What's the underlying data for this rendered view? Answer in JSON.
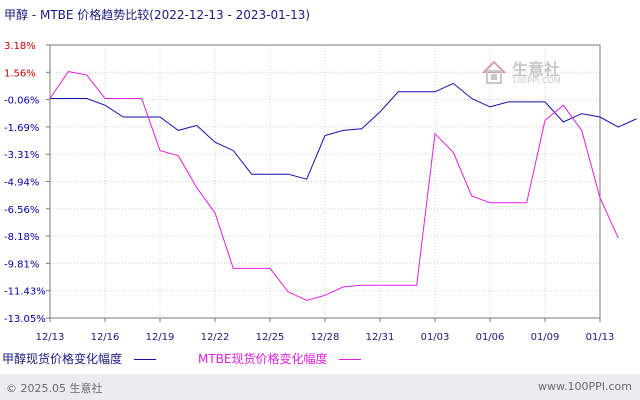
{
  "title": "甲醇 - MTBE 价格趋势比较(2022-12-13 - 2023-01-13)",
  "watermark": {
    "main": "生意社",
    "sub": "100PPI.COM"
  },
  "footer": {
    "left": "© 2025.05 生意社",
    "right": "www.100PPI.com"
  },
  "colors": {
    "series1": "#1010a8",
    "series2": "#e020e0",
    "axis": "#7a7a7a",
    "grid": "#cfcfd8",
    "ytick_pos": "#cc0000",
    "ytick_neg": "#0000aa",
    "xtick": "#1a1a80",
    "watermark": "#c8c8c8"
  },
  "chart_data": {
    "type": "line",
    "ylabels": [
      "3.18%",
      "1.56%",
      "-0.06%",
      "-1.69%",
      "-3.31%",
      "-4.94%",
      "-6.56%",
      "-8.18%",
      "-9.81%",
      "-11.43%",
      "-13.05%"
    ],
    "ylim": [
      -13.05,
      3.18
    ],
    "xlabels": [
      "12/13",
      "12/16",
      "12/19",
      "12/22",
      "12/25",
      "12/28",
      "12/31",
      "01/03",
      "01/06",
      "01/09",
      "01/13"
    ],
    "grid": true,
    "legend_position": "bottom",
    "series": [
      {
        "name": "甲醇现货价格变化幅度",
        "points": [
          [
            "12/13",
            0
          ],
          [
            "12/15",
            0
          ],
          [
            "12/16",
            -0.4
          ],
          [
            "12/17",
            -1.1
          ],
          [
            "12/18",
            -1.1
          ],
          [
            "12/19",
            -1.1
          ],
          [
            "12/20",
            -1.9
          ],
          [
            "12/21",
            -1.6
          ],
          [
            "12/22",
            -2.6
          ],
          [
            "12/23",
            -3.1
          ],
          [
            "12/24",
            -4.5
          ],
          [
            "12/25",
            -4.5
          ],
          [
            "12/26",
            -4.5
          ],
          [
            "12/27",
            -4.8
          ],
          [
            "12/28",
            -2.2
          ],
          [
            "12/29",
            -1.9
          ],
          [
            "12/30",
            -1.8
          ],
          [
            "12/31",
            -0.8
          ],
          [
            "01/01",
            0.4
          ],
          [
            "01/02",
            0.4
          ],
          [
            "01/03",
            0.4
          ],
          [
            "01/04",
            0.9
          ],
          [
            "01/05",
            0
          ],
          [
            "01/06",
            -0.5
          ],
          [
            "01/07",
            -0.2
          ],
          [
            "01/08",
            -0.2
          ],
          [
            "01/09",
            -0.2
          ],
          [
            "01/10",
            -1.4
          ],
          [
            "01/11",
            -0.9
          ],
          [
            "01/12",
            -1.1
          ],
          [
            "01/13",
            -1.7
          ],
          [
            "01/14",
            -1.2
          ]
        ]
      },
      {
        "name": "MTBE现货价格变化幅度",
        "points": [
          [
            "12/13",
            0
          ],
          [
            "12/14",
            1.6
          ],
          [
            "12/15",
            1.4
          ],
          [
            "12/16",
            0
          ],
          [
            "12/17",
            0
          ],
          [
            "12/18",
            0
          ],
          [
            "12/19",
            -3.1
          ],
          [
            "12/20",
            -3.4
          ],
          [
            "12/21",
            -5.3
          ],
          [
            "12/22",
            -6.8
          ],
          [
            "12/23",
            -10.1
          ],
          [
            "12/24",
            -10.1
          ],
          [
            "12/25",
            -10.1
          ],
          [
            "12/26",
            -11.5
          ],
          [
            "12/27",
            -12
          ],
          [
            "12/28",
            -11.7
          ],
          [
            "12/29",
            -11.2
          ],
          [
            "12/30",
            -11.1
          ],
          [
            "12/31",
            -11.1
          ],
          [
            "01/01",
            -11.1
          ],
          [
            "01/02",
            -11.1
          ],
          [
            "01/03",
            -2.1
          ],
          [
            "01/04",
            -3.2
          ],
          [
            "01/05",
            -5.8
          ],
          [
            "01/06",
            -6.2
          ],
          [
            "01/07",
            -6.2
          ],
          [
            "01/08",
            -6.2
          ],
          [
            "01/09",
            -1.3
          ],
          [
            "01/10",
            -0.4
          ],
          [
            "01/11",
            -1.9
          ],
          [
            "01/12",
            -5.9
          ],
          [
            "01/13",
            -8.3
          ]
        ]
      }
    ]
  }
}
